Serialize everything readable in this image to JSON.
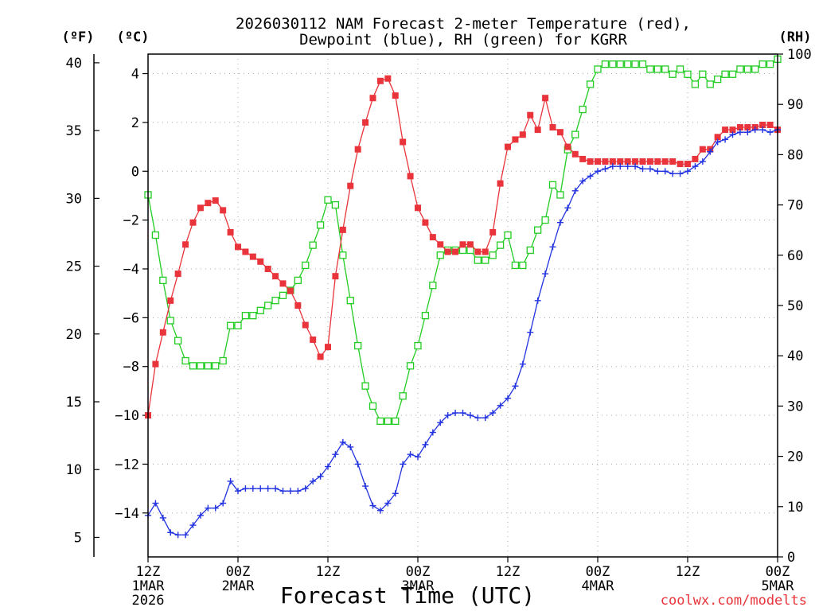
{
  "chart_data": {
    "type": "line",
    "title": [
      "2026030112 NAM Forecast 2-meter Temperature (red),",
      "Dewpoint (blue), RH (green) for KGRR"
    ],
    "xlabel": "Forecast Time (UTC)",
    "watermark": "coolwx.com/modelts",
    "unit_labels": {
      "f": "(ºF)",
      "c": "(ºC)",
      "rh": "(RH)"
    },
    "x_range_hours": [
      0,
      84
    ],
    "x_ticks": [
      {
        "h": 0,
        "lines": [
          "12Z",
          "1MAR",
          "2026"
        ]
      },
      {
        "h": 12,
        "lines": [
          "00Z",
          "2MAR"
        ]
      },
      {
        "h": 24,
        "lines": [
          "12Z"
        ]
      },
      {
        "h": 36,
        "lines": [
          "00Z",
          "3MAR"
        ]
      },
      {
        "h": 48,
        "lines": [
          "12Z"
        ]
      },
      {
        "h": 60,
        "lines": [
          "00Z",
          "4MAR"
        ]
      },
      {
        "h": 72,
        "lines": [
          "12Z"
        ]
      },
      {
        "h": 84,
        "lines": [
          "00Z",
          "5MAR"
        ]
      }
    ],
    "c_axis": {
      "range": [
        -15.8,
        4.8
      ],
      "ticks": [
        4,
        2,
        0,
        -2,
        -4,
        -6,
        -8,
        -10,
        -12,
        -14
      ]
    },
    "f_axis": {
      "range": [
        3.56,
        40.64
      ],
      "ticks": [
        40,
        35,
        30,
        25,
        20,
        15,
        10,
        5
      ]
    },
    "rh_axis": {
      "range": [
        0,
        100
      ],
      "ticks": [
        100,
        90,
        80,
        70,
        60,
        50,
        40,
        30,
        20,
        10,
        0
      ]
    },
    "series": [
      {
        "name": "Temperature",
        "unit": "degC",
        "color": "#e8343a",
        "marker": "filled-square",
        "x": [
          0,
          1,
          2,
          3,
          4,
          5,
          6,
          7,
          8,
          9,
          10,
          11,
          12,
          13,
          14,
          15,
          16,
          17,
          18,
          19,
          20,
          21,
          22,
          23,
          24,
          25,
          26,
          27,
          28,
          29,
          30,
          31,
          32,
          33,
          34,
          35,
          36,
          37,
          38,
          39,
          40,
          41,
          42,
          43,
          44,
          45,
          46,
          47,
          48,
          49,
          50,
          51,
          52,
          53,
          54,
          55,
          56,
          57,
          58,
          59,
          60,
          61,
          62,
          63,
          64,
          65,
          66,
          67,
          68,
          69,
          70,
          71,
          72,
          73,
          74,
          75,
          76,
          77,
          78,
          79,
          80,
          81,
          82,
          83,
          84
        ],
        "values": [
          -10.0,
          -7.9,
          -6.6,
          -5.3,
          -4.2,
          -3.0,
          -2.1,
          -1.5,
          -1.3,
          -1.2,
          -1.6,
          -2.5,
          -3.1,
          -3.3,
          -3.5,
          -3.7,
          -4.0,
          -4.3,
          -4.6,
          -4.9,
          -5.5,
          -6.3,
          -6.9,
          -7.6,
          -7.2,
          -4.3,
          -2.4,
          -0.6,
          0.9,
          2.0,
          3.0,
          3.7,
          3.8,
          3.1,
          1.2,
          -0.2,
          -1.5,
          -2.1,
          -2.7,
          -3.0,
          -3.3,
          -3.3,
          -3.0,
          -3.0,
          -3.3,
          -3.3,
          -2.5,
          -0.5,
          1.0,
          1.3,
          1.5,
          2.3,
          1.7,
          3.0,
          1.8,
          1.6,
          1.0,
          0.7,
          0.5,
          0.4,
          0.4,
          0.4,
          0.4,
          0.4,
          0.4,
          0.4,
          0.4,
          0.4,
          0.4,
          0.4,
          0.4,
          0.3,
          0.3,
          0.5,
          0.9,
          0.9,
          1.4,
          1.7,
          1.7,
          1.8,
          1.8,
          1.8,
          1.9,
          1.9,
          1.7
        ]
      },
      {
        "name": "Dewpoint",
        "unit": "degC",
        "color": "#2233e0",
        "marker": "plus",
        "x": [
          0,
          1,
          2,
          3,
          4,
          5,
          6,
          7,
          8,
          9,
          10,
          11,
          12,
          13,
          14,
          15,
          16,
          17,
          18,
          19,
          20,
          21,
          22,
          23,
          24,
          25,
          26,
          27,
          28,
          29,
          30,
          31,
          32,
          33,
          34,
          35,
          36,
          37,
          38,
          39,
          40,
          41,
          42,
          43,
          44,
          45,
          46,
          47,
          48,
          49,
          50,
          51,
          52,
          53,
          54,
          55,
          56,
          57,
          58,
          59,
          60,
          61,
          62,
          63,
          64,
          65,
          66,
          67,
          68,
          69,
          70,
          71,
          72,
          73,
          74,
          75,
          76,
          77,
          78,
          79,
          80,
          81,
          82,
          83,
          84
        ],
        "values": [
          -14.1,
          -13.6,
          -14.2,
          -14.8,
          -14.9,
          -14.9,
          -14.5,
          -14.1,
          -13.8,
          -13.8,
          -13.6,
          -12.7,
          -13.1,
          -13.0,
          -13.0,
          -13.0,
          -13.0,
          -13.0,
          -13.1,
          -13.1,
          -13.1,
          -13.0,
          -12.7,
          -12.5,
          -12.1,
          -11.6,
          -11.1,
          -11.3,
          -12.0,
          -12.9,
          -13.7,
          -13.9,
          -13.6,
          -13.2,
          -12.0,
          -11.6,
          -11.7,
          -11.2,
          -10.7,
          -10.3,
          -10.0,
          -9.9,
          -9.9,
          -10.0,
          -10.1,
          -10.1,
          -9.9,
          -9.6,
          -9.3,
          -8.8,
          -7.9,
          -6.6,
          -5.3,
          -4.2,
          -3.1,
          -2.1,
          -1.5,
          -0.8,
          -0.4,
          -0.2,
          0.0,
          0.1,
          0.2,
          0.2,
          0.2,
          0.2,
          0.1,
          0.1,
          0.0,
          0.0,
          -0.1,
          -0.1,
          0.0,
          0.2,
          0.4,
          0.8,
          1.2,
          1.3,
          1.5,
          1.6,
          1.6,
          1.7,
          1.7,
          1.6,
          1.7
        ]
      },
      {
        "name": "RH",
        "unit": "%",
        "color": "#22cc22",
        "marker": "open-square",
        "x": [
          0,
          1,
          2,
          3,
          4,
          5,
          6,
          7,
          8,
          9,
          10,
          11,
          12,
          13,
          14,
          15,
          16,
          17,
          18,
          19,
          20,
          21,
          22,
          23,
          24,
          25,
          26,
          27,
          28,
          29,
          30,
          31,
          32,
          33,
          34,
          35,
          36,
          37,
          38,
          39,
          40,
          41,
          42,
          43,
          44,
          45,
          46,
          47,
          48,
          49,
          50,
          51,
          52,
          53,
          54,
          55,
          56,
          57,
          58,
          59,
          60,
          61,
          62,
          63,
          64,
          65,
          66,
          67,
          68,
          69,
          70,
          71,
          72,
          73,
          74,
          75,
          76,
          77,
          78,
          79,
          80,
          81,
          82,
          83,
          84
        ],
        "values": [
          72,
          64,
          55,
          47,
          43,
          39,
          38,
          38,
          38,
          38,
          39,
          46,
          46,
          48,
          48,
          49,
          50,
          51,
          52,
          53,
          55,
          58,
          62,
          66,
          71,
          70,
          60,
          51,
          42,
          34,
          30,
          27,
          27,
          27,
          32,
          38,
          42,
          48,
          54,
          60,
          61,
          61,
          61,
          61,
          59,
          59,
          60,
          62,
          64,
          58,
          58,
          61,
          65,
          67,
          74,
          72,
          81,
          84,
          89,
          94,
          97,
          98,
          98,
          98,
          98,
          98,
          98,
          97,
          97,
          97,
          96,
          97,
          96,
          94,
          96,
          94,
          95,
          96,
          96,
          97,
          97,
          97,
          98,
          98,
          99
        ]
      }
    ]
  }
}
